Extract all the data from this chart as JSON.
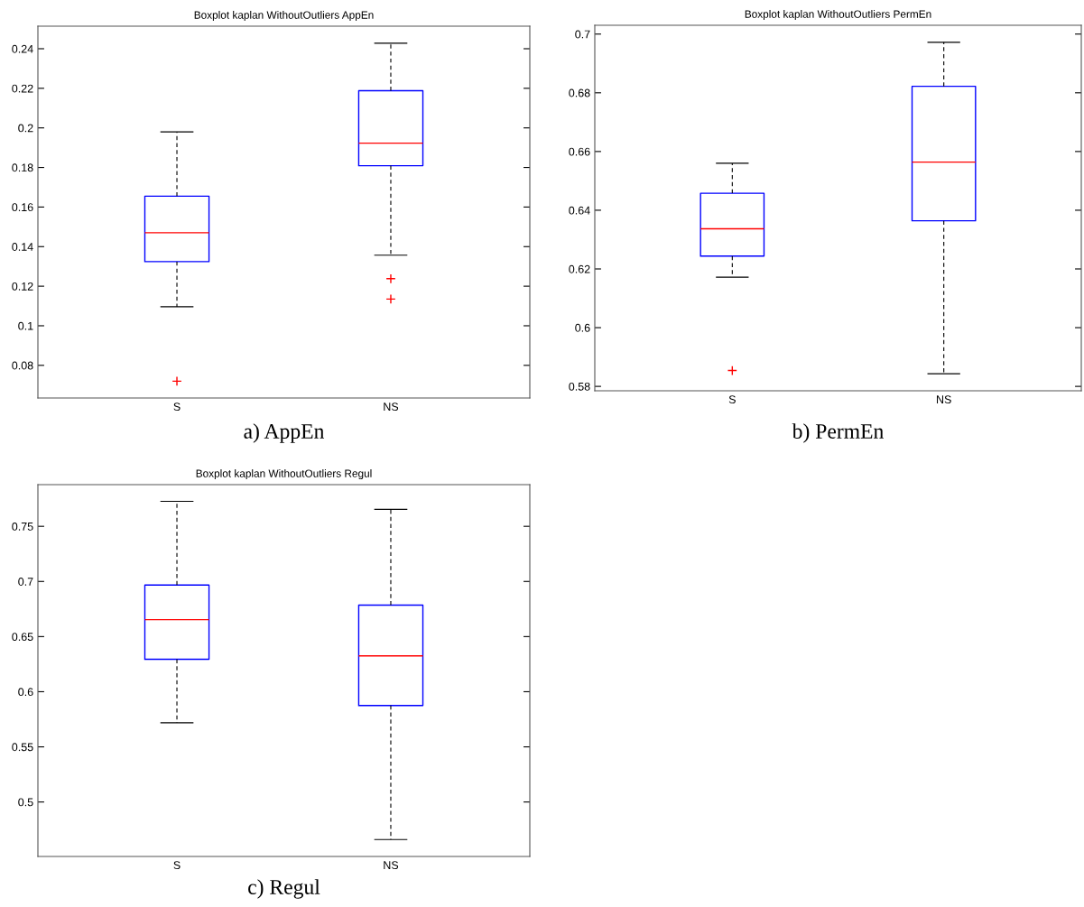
{
  "chart_data": [
    {
      "type": "box",
      "title": "Boxplot kaplan WithoutOutliers AppEn",
      "categories": [
        "S",
        "NS"
      ],
      "ylim": [
        0.0635,
        0.2514
      ],
      "yticks": [
        0.08,
        0.1,
        0.12,
        0.14,
        0.16,
        0.18,
        0.2,
        0.22,
        0.24
      ],
      "annotations": [
        "a) AppEn"
      ],
      "series": [
        {
          "color": "#0000ff",
          "boxes": [
            {
              "low": 0.1096,
              "q1": 0.1324,
              "median": 0.147,
              "q3": 0.1655,
              "high": 0.198,
              "outliers": [
                0.072
              ]
            },
            {
              "low": 0.1357,
              "q1": 0.1809,
              "median": 0.1923,
              "q3": 0.2188,
              "high": 0.2428,
              "outliers": [
                0.1238,
                0.1135
              ]
            }
          ]
        }
      ]
    },
    {
      "type": "box",
      "title": "Boxplot kaplan WithoutOutliers PermEn",
      "categories": [
        "S",
        "NS"
      ],
      "ylim": [
        0.5785,
        0.703
      ],
      "yticks": [
        0.58,
        0.6,
        0.62,
        0.64,
        0.66,
        0.68,
        0.7
      ],
      "annotations": [
        "b) PermEn"
      ],
      "series": [
        {
          "color": "#0000ff",
          "boxes": [
            {
              "low": 0.6172,
              "q1": 0.6244,
              "median": 0.6337,
              "q3": 0.6458,
              "high": 0.656,
              "outliers": [
                0.5854
              ]
            },
            {
              "low": 0.5843,
              "q1": 0.6364,
              "median": 0.6564,
              "q3": 0.6822,
              "high": 0.6972
            }
          ]
        }
      ]
    },
    {
      "type": "box",
      "title": "Boxplot kaplan WithoutOutliers Regul",
      "categories": [
        "S",
        "NS"
      ],
      "ylim": [
        0.4506,
        0.7878
      ],
      "yticks": [
        0.5,
        0.55,
        0.6,
        0.65,
        0.7,
        0.75
      ],
      "annotations": [
        "c) Regul"
      ],
      "series": [
        {
          "color": "#0000ff",
          "boxes": [
            {
              "low": 0.5718,
              "q1": 0.6294,
              "median": 0.6653,
              "q3": 0.6968,
              "high": 0.7727
            },
            {
              "low": 0.466,
              "q1": 0.5875,
              "median": 0.6325,
              "q3": 0.6785,
              "high": 0.7654
            }
          ]
        }
      ]
    }
  ]
}
